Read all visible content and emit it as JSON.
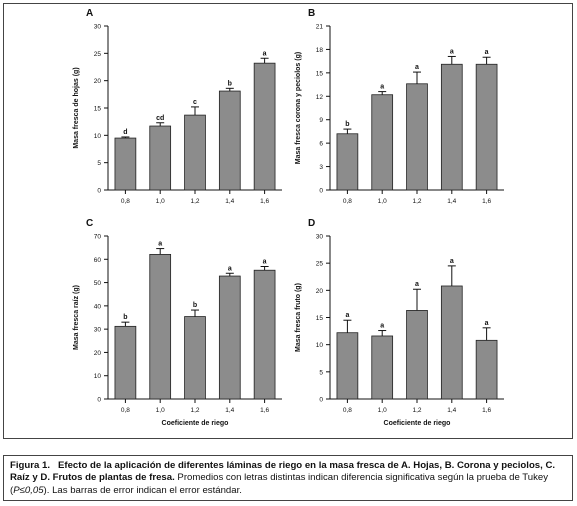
{
  "figure": {
    "caption_label": "Figura 1.",
    "caption_bold": "Efecto de la aplicación de diferentes láminas de riego en la masa fresca de A. Hojas, B. Corona y peciolos, C. Raíz y D. Frutos de plantas de fresa.",
    "caption_normal_1": " Promedios con letras distintas indican diferencia significativa según la prueba de Tukey (",
    "caption_p": "P≤0,05",
    "caption_normal_2": "). Las barras de error indican el error estándar."
  },
  "chart_data": [
    {
      "panel": "A",
      "type": "bar",
      "xlabel": "",
      "ylabel": "Masa fresca de hojas (g)",
      "categories": [
        "0,8",
        "1,0",
        "1,2",
        "1,4",
        "1,6"
      ],
      "values": [
        9.5,
        11.7,
        13.7,
        18.1,
        23.2
      ],
      "errors": [
        0.2,
        0.6,
        1.5,
        0.5,
        0.9
      ],
      "letters": [
        "d",
        "cd",
        "c",
        "b",
        "a"
      ],
      "ylim": [
        0,
        30
      ],
      "yticks": [
        0,
        5,
        10,
        15,
        20,
        25,
        30
      ],
      "bar_color": "#8c8c8c"
    },
    {
      "panel": "B",
      "type": "bar",
      "xlabel": "",
      "ylabel": "Masa fresca corona y peciolos (g)",
      "categories": [
        "0,8",
        "1,0",
        "1,2",
        "1,4",
        "1,6"
      ],
      "values": [
        7.2,
        12.2,
        13.6,
        16.1,
        16.1
      ],
      "errors": [
        0.6,
        0.4,
        1.5,
        1.0,
        0.9
      ],
      "letters": [
        "b",
        "a",
        "a",
        "a",
        "a"
      ],
      "ylim": [
        0,
        21
      ],
      "yticks": [
        0,
        3,
        6,
        9,
        12,
        15,
        18,
        21
      ],
      "bar_color": "#8c8c8c"
    },
    {
      "panel": "C",
      "type": "bar",
      "xlabel": "Coeficiente de riego",
      "ylabel": "Masa fresca raíz (g)",
      "categories": [
        "0,8",
        "1,0",
        "1,2",
        "1,4",
        "1,6"
      ],
      "values": [
        31.2,
        62.1,
        35.4,
        52.8,
        55.3
      ],
      "errors": [
        1.8,
        2.5,
        2.8,
        1.2,
        1.6
      ],
      "letters": [
        "b",
        "a",
        "b",
        "a",
        "a"
      ],
      "ylim": [
        0,
        70
      ],
      "yticks": [
        0,
        10,
        20,
        30,
        40,
        50,
        60,
        70
      ],
      "bar_color": "#8c8c8c"
    },
    {
      "panel": "D",
      "type": "bar",
      "xlabel": "Coeficiente de riego",
      "ylabel": "Masa fresca fruto (g)",
      "categories": [
        "0,8",
        "1,0",
        "1,2",
        "1,4",
        "1,6"
      ],
      "values": [
        12.2,
        11.6,
        16.3,
        20.8,
        10.8
      ],
      "errors": [
        2.3,
        1.0,
        3.9,
        3.7,
        2.3
      ],
      "letters": [
        "a",
        "a",
        "a",
        "a",
        "a"
      ],
      "ylim": [
        0,
        30
      ],
      "yticks": [
        0,
        5,
        10,
        15,
        20,
        25,
        30
      ],
      "bar_color": "#8c8c8c"
    }
  ]
}
